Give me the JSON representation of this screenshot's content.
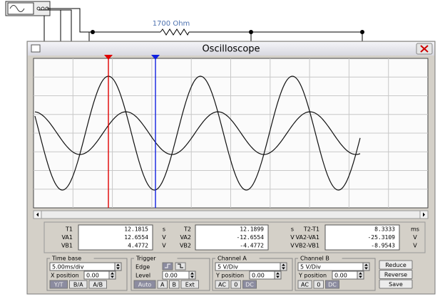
{
  "circuit": {
    "resistor_label": "1700 Ohm"
  },
  "window": {
    "title": "Oscilloscope"
  },
  "readouts": [
    {
      "rows": [
        {
          "label": "T1",
          "value": "12.1815",
          "unit": "s"
        },
        {
          "label": "VA1",
          "value": "12.6554",
          "unit": "V"
        },
        {
          "label": "VB1",
          "value": "4.4772",
          "unit": "V"
        }
      ]
    },
    {
      "rows": [
        {
          "label": "T2",
          "value": "12.1899",
          "unit": "s"
        },
        {
          "label": "VA2",
          "value": "-12.6554",
          "unit": "V"
        },
        {
          "label": "VB2",
          "value": "-4.4772",
          "unit": "V"
        }
      ]
    },
    {
      "rows": [
        {
          "label": "T2-T1",
          "value": "8.3333",
          "unit": "ms"
        },
        {
          "label": "VA2-VA1",
          "value": "-25.3109",
          "unit": "V"
        },
        {
          "label": "VB2-VB1",
          "value": "-8.9543",
          "unit": "V"
        }
      ]
    }
  ],
  "controls": {
    "time_base": {
      "title": "Time base",
      "scale": "5.00ms/div",
      "position_label": "X position",
      "position": "0.00",
      "buttons": [
        "Y/T",
        "B/A",
        "A/B"
      ]
    },
    "trigger": {
      "title": "Trigger",
      "edge_label": "Edge",
      "level_label": "Level",
      "level": "0.00",
      "buttons": [
        "Auto",
        "A",
        "B",
        "Ext"
      ]
    },
    "channel_a": {
      "title": "Channel A",
      "scale": "5 V/Div",
      "position_label": "Y position",
      "position": "0.00",
      "buttons": [
        "AC",
        "0",
        "DC"
      ]
    },
    "channel_b": {
      "title": "Channel B",
      "scale": "5 V/Div",
      "position_label": "Y position",
      "position": "0.00",
      "buttons": [
        "AC",
        "0",
        "DC"
      ]
    },
    "actions": [
      "Reduce",
      "Reverse",
      "Save"
    ]
  }
}
